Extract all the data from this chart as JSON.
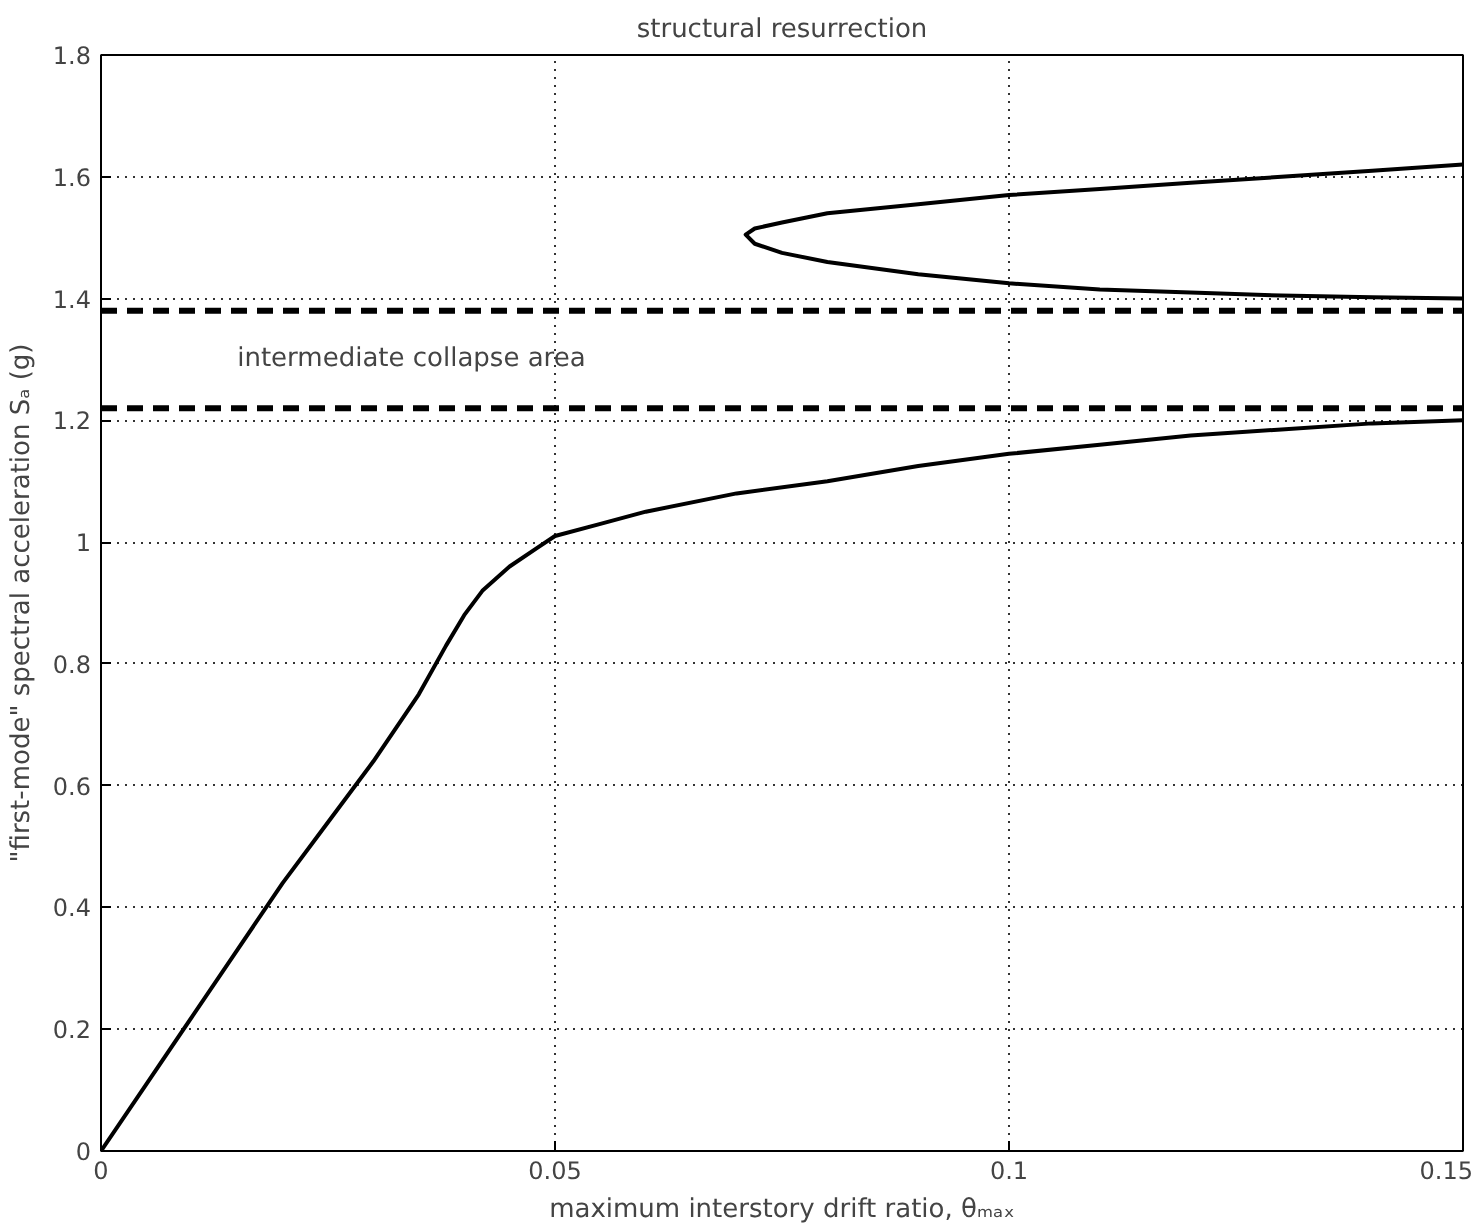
{
  "chart_data": {
    "type": "line",
    "title": "structural resurrection",
    "xlabel": "maximum interstory drift ratio, θₘₐₓ",
    "ylabel": "\"first-mode\" spectral acceleration Sₐ (g)",
    "xlim": [
      0,
      0.15
    ],
    "ylim": [
      0,
      1.8
    ],
    "xticks": [
      0,
      0.05,
      0.1,
      0.15
    ],
    "yticks": [
      0,
      0.2,
      0.4,
      0.6,
      0.8,
      1,
      1.2,
      1.4,
      1.6,
      1.8
    ],
    "grid": true,
    "marker": "none",
    "line_style": "solid",
    "series": [
      {
        "color": "#000000",
        "x": [
          0,
          0.005,
          0.01,
          0.015,
          0.02,
          0.025,
          0.03,
          0.035,
          0.038,
          0.04,
          0.042,
          0.045,
          0.048,
          0.05,
          0.055,
          0.06,
          0.07,
          0.08,
          0.09,
          0.1,
          0.11,
          0.12,
          0.13,
          0.14,
          0.15
        ],
        "values": [
          0,
          0.11,
          0.22,
          0.33,
          0.44,
          0.54,
          0.64,
          0.75,
          0.83,
          0.88,
          0.92,
          0.96,
          0.99,
          1.01,
          1.03,
          1.05,
          1.08,
          1.1,
          1.125,
          1.145,
          1.16,
          1.175,
          1.185,
          1.195,
          1.2
        ]
      },
      {
        "color": "#000000",
        "x": [
          0.15,
          0.14,
          0.13,
          0.12,
          0.11,
          0.1,
          0.09,
          0.08,
          0.075,
          0.072,
          0.071,
          0.072,
          0.075,
          0.08,
          0.09,
          0.1,
          0.11,
          0.12,
          0.13,
          0.14,
          0.15
        ],
        "values": [
          1.4,
          1.402,
          1.405,
          1.41,
          1.415,
          1.425,
          1.44,
          1.46,
          1.475,
          1.49,
          1.505,
          1.515,
          1.525,
          1.54,
          1.555,
          1.57,
          1.58,
          1.59,
          1.6,
          1.61,
          1.62
        ]
      }
    ],
    "ref_lines": [
      {
        "axis": "y",
        "value": 1.38,
        "line_style": "dashed",
        "color": "#000000"
      },
      {
        "axis": "y",
        "value": 1.22,
        "line_style": "dashed",
        "color": "#000000"
      }
    ],
    "annotations": [
      "intermediate collapse area"
    ]
  }
}
